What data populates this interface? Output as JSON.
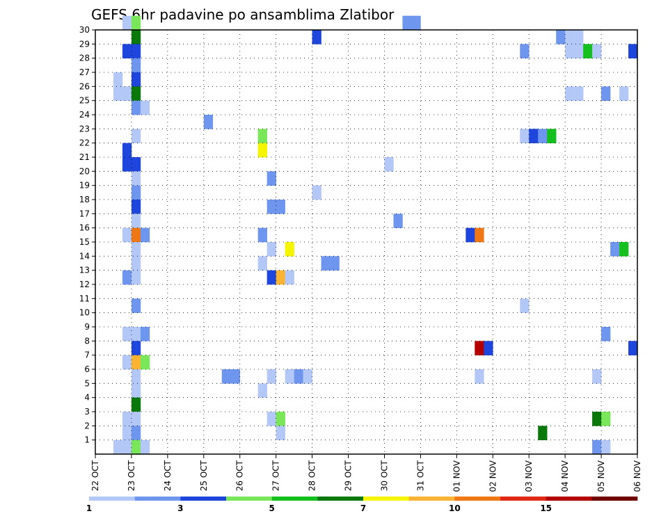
{
  "chart_data": {
    "type": "heatmap",
    "title": "GEFS 6hr padavine po ansamblima Zlatibor",
    "xlabel": "",
    "ylabel": "",
    "x_ticks": [
      "22 OCT",
      "23 OCT",
      "24 OCT",
      "25 OCT",
      "26 OCT",
      "27 OCT",
      "28 OCT",
      "29 OCT",
      "30 OCT",
      "31 OCT",
      "01 NOV",
      "02 NOV",
      "03 NOV",
      "04 NOV",
      "05 NOV",
      "06 NOV"
    ],
    "y_ticks": [
      "1",
      "2",
      "3",
      "4",
      "5",
      "6",
      "7",
      "8",
      "9",
      "10",
      "11",
      "12",
      "13",
      "14",
      "15",
      "16",
      "17",
      "18",
      "19",
      "20",
      "21",
      "22",
      "23",
      "24",
      "25",
      "26",
      "27",
      "28",
      "29",
      "30"
    ],
    "xlim": [
      0,
      60
    ],
    "ylim": [
      0,
      30
    ],
    "grid": true,
    "color_scale": {
      "levels": [
        "1",
        "2",
        "3",
        "4",
        "5",
        "6",
        "7",
        "8",
        "10",
        "12",
        "15",
        "20"
      ],
      "colors": [
        "#b4c8f8",
        "#6e96ee",
        "#1e46dc",
        "#7ae65a",
        "#14c01e",
        "#0a780a",
        "#f5f500",
        "#f8b432",
        "#f07814",
        "#e02814",
        "#b40000",
        "#6e0000"
      ]
    },
    "cells": [
      {
        "x": 3,
        "y": 30,
        "v": 1.5
      },
      {
        "x": 4,
        "y": 30,
        "v": 4.5
      },
      {
        "x": 4,
        "y": 29,
        "v": 6.5
      },
      {
        "x": 3,
        "y": 28,
        "v": 3.5
      },
      {
        "x": 4,
        "y": 28,
        "v": 3.5
      },
      {
        "x": 4,
        "y": 27,
        "v": 2.5
      },
      {
        "x": 2,
        "y": 26,
        "v": 1.5
      },
      {
        "x": 4,
        "y": 26,
        "v": 3.5
      },
      {
        "x": 2,
        "y": 25,
        "v": 1.5
      },
      {
        "x": 3,
        "y": 25,
        "v": 1.5
      },
      {
        "x": 4,
        "y": 25,
        "v": 6.5
      },
      {
        "x": 4,
        "y": 24,
        "v": 2.5
      },
      {
        "x": 5,
        "y": 24,
        "v": 1.5
      },
      {
        "x": 4,
        "y": 22,
        "v": 1.5
      },
      {
        "x": 3,
        "y": 21,
        "v": 3.5
      },
      {
        "x": 3,
        "y": 20,
        "v": 3.5
      },
      {
        "x": 4,
        "y": 20,
        "v": 3.5
      },
      {
        "x": 4,
        "y": 19,
        "v": 1.5
      },
      {
        "x": 4,
        "y": 18,
        "v": 2.5
      },
      {
        "x": 4,
        "y": 17,
        "v": 3.5
      },
      {
        "x": 4,
        "y": 16,
        "v": 1.5
      },
      {
        "x": 3,
        "y": 15,
        "v": 1.5
      },
      {
        "x": 4,
        "y": 15,
        "v": 11
      },
      {
        "x": 5,
        "y": 15,
        "v": 2.5
      },
      {
        "x": 4,
        "y": 14,
        "v": 1.5
      },
      {
        "x": 4,
        "y": 13,
        "v": 1.5
      },
      {
        "x": 3,
        "y": 12,
        "v": 2.5
      },
      {
        "x": 4,
        "y": 12,
        "v": 1.5
      },
      {
        "x": 4,
        "y": 10,
        "v": 2.5
      },
      {
        "x": 3,
        "y": 8,
        "v": 1.5
      },
      {
        "x": 4,
        "y": 8,
        "v": 1.5
      },
      {
        "x": 5,
        "y": 8,
        "v": 2.5
      },
      {
        "x": 4,
        "y": 7,
        "v": 3.5
      },
      {
        "x": 3,
        "y": 6,
        "v": 1.5
      },
      {
        "x": 4,
        "y": 6,
        "v": 9
      },
      {
        "x": 5,
        "y": 6,
        "v": 4.5
      },
      {
        "x": 4,
        "y": 5,
        "v": 1.5
      },
      {
        "x": 4,
        "y": 4,
        "v": 1.5
      },
      {
        "x": 4,
        "y": 3,
        "v": 6.5
      },
      {
        "x": 3,
        "y": 2,
        "v": 1.5
      },
      {
        "x": 4,
        "y": 2,
        "v": 1.5
      },
      {
        "x": 3,
        "y": 1,
        "v": 1.5
      },
      {
        "x": 4,
        "y": 1,
        "v": 2.5
      },
      {
        "x": 2,
        "y": 0,
        "v": 1.5
      },
      {
        "x": 3,
        "y": 0,
        "v": 1.5
      },
      {
        "x": 4,
        "y": 0,
        "v": 4.5
      },
      {
        "x": 5,
        "y": 0,
        "v": 1.5
      },
      {
        "x": 12,
        "y": 23,
        "v": 2.5
      },
      {
        "x": 14,
        "y": 5,
        "v": 2.5
      },
      {
        "x": 15,
        "y": 5,
        "v": 2.5
      },
      {
        "x": 18,
        "y": 22,
        "v": 4.5
      },
      {
        "x": 18,
        "y": 21,
        "v": 7.5
      },
      {
        "x": 19,
        "y": 19,
        "v": 2.5
      },
      {
        "x": 19,
        "y": 17,
        "v": 2.5
      },
      {
        "x": 20,
        "y": 17,
        "v": 2.5
      },
      {
        "x": 18,
        "y": 15,
        "v": 2.5
      },
      {
        "x": 19,
        "y": 14,
        "v": 1.5
      },
      {
        "x": 21,
        "y": 14,
        "v": 7.5
      },
      {
        "x": 18,
        "y": 13,
        "v": 1.5
      },
      {
        "x": 19,
        "y": 12,
        "v": 3.5
      },
      {
        "x": 20,
        "y": 12,
        "v": 9
      },
      {
        "x": 21,
        "y": 12,
        "v": 1.5
      },
      {
        "x": 19,
        "y": 5,
        "v": 1.5
      },
      {
        "x": 21,
        "y": 5,
        "v": 1.5
      },
      {
        "x": 22,
        "y": 5,
        "v": 2.5
      },
      {
        "x": 23,
        "y": 5,
        "v": 1.5
      },
      {
        "x": 18,
        "y": 4,
        "v": 1.5
      },
      {
        "x": 19,
        "y": 2,
        "v": 1.5
      },
      {
        "x": 20,
        "y": 2,
        "v": 4.5
      },
      {
        "x": 20,
        "y": 1,
        "v": 1.5
      },
      {
        "x": 24,
        "y": 29,
        "v": 3.5
      },
      {
        "x": 24,
        "y": 18,
        "v": 1.5
      },
      {
        "x": 25,
        "y": 13,
        "v": 2.5
      },
      {
        "x": 26,
        "y": 13,
        "v": 2.5
      },
      {
        "x": 32,
        "y": 20,
        "v": 1.5
      },
      {
        "x": 33,
        "y": 16,
        "v": 2.5
      },
      {
        "x": 34,
        "y": 30,
        "v": 2.5
      },
      {
        "x": 35,
        "y": 30,
        "v": 2.5
      },
      {
        "x": 41,
        "y": 15,
        "v": 3.5
      },
      {
        "x": 42,
        "y": 15,
        "v": 11
      },
      {
        "x": 42,
        "y": 7,
        "v": 17
      },
      {
        "x": 43,
        "y": 7,
        "v": 3.5
      },
      {
        "x": 42,
        "y": 5,
        "v": 1.5
      },
      {
        "x": 47,
        "y": 28,
        "v": 2.5
      },
      {
        "x": 47,
        "y": 22,
        "v": 1.5
      },
      {
        "x": 48,
        "y": 22,
        "v": 3.5
      },
      {
        "x": 49,
        "y": 22,
        "v": 2.5
      },
      {
        "x": 50,
        "y": 22,
        "v": 5.5
      },
      {
        "x": 47,
        "y": 10,
        "v": 1.5
      },
      {
        "x": 49,
        "y": 1,
        "v": 6.5
      },
      {
        "x": 51,
        "y": 29,
        "v": 2.5
      },
      {
        "x": 52,
        "y": 29,
        "v": 1.5
      },
      {
        "x": 53,
        "y": 29,
        "v": 1.5
      },
      {
        "x": 52,
        "y": 28,
        "v": 1.5
      },
      {
        "x": 53,
        "y": 28,
        "v": 1.5
      },
      {
        "x": 54,
        "y": 28,
        "v": 5.5
      },
      {
        "x": 55,
        "y": 28,
        "v": 1.5
      },
      {
        "x": 59,
        "y": 28,
        "v": 3.5
      },
      {
        "x": 52,
        "y": 25,
        "v": 1.5
      },
      {
        "x": 53,
        "y": 25,
        "v": 1.5
      },
      {
        "x": 56,
        "y": 25,
        "v": 2.5
      },
      {
        "x": 58,
        "y": 25,
        "v": 1.5
      },
      {
        "x": 57,
        "y": 14,
        "v": 2.5
      },
      {
        "x": 58,
        "y": 14,
        "v": 5.5
      },
      {
        "x": 56,
        "y": 8,
        "v": 2.5
      },
      {
        "x": 59,
        "y": 7,
        "v": 3.5
      },
      {
        "x": 55,
        "y": 5,
        "v": 1.5
      },
      {
        "x": 55,
        "y": 2,
        "v": 6.5
      },
      {
        "x": 56,
        "y": 2,
        "v": 4.5
      },
      {
        "x": 55,
        "y": 0,
        "v": 2.5
      },
      {
        "x": 56,
        "y": 0,
        "v": 1.5
      }
    ]
  }
}
